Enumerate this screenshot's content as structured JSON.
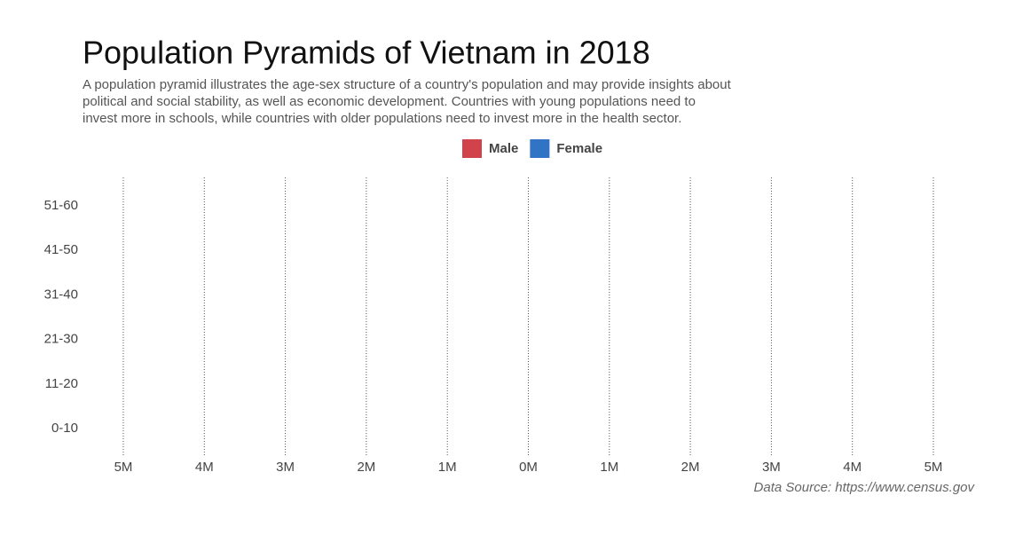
{
  "chart_data": {
    "type": "pyramid",
    "title": "Population Pyramids of Vietnam in 2018",
    "subtitle": [
      "A population pyramid illustrates the age-sex structure of a country's population and may provide insights about",
      "political and social stability, as well as economic development. Countries with young populations need to",
      "invest more in schools, while countries with older populations need to invest more in the health sector."
    ],
    "caption": "Data Source: https://www.census.gov",
    "categories": [
      "0-10",
      "11-20",
      "21-30",
      "31-40",
      "41-50",
      "51-60"
    ],
    "series": [
      {
        "name": "Male",
        "color": "#d1434b",
        "values": [
          null,
          null,
          null,
          null,
          null,
          null
        ]
      },
      {
        "name": "Female",
        "color": "#3173c4",
        "values": [
          null,
          null,
          null,
          null,
          null,
          null
        ]
      }
    ],
    "xlim": [
      -5000000,
      5000000
    ],
    "xticks": [
      {
        "value": -5000000,
        "label": "5M"
      },
      {
        "value": -4000000,
        "label": "4M"
      },
      {
        "value": -3000000,
        "label": "3M"
      },
      {
        "value": -2000000,
        "label": "2M"
      },
      {
        "value": -1000000,
        "label": "1M"
      },
      {
        "value": 0,
        "label": "0M"
      },
      {
        "value": 1000000,
        "label": "1M"
      },
      {
        "value": 2000000,
        "label": "2M"
      },
      {
        "value": 3000000,
        "label": "3M"
      },
      {
        "value": 4000000,
        "label": "4M"
      },
      {
        "value": 5000000,
        "label": "5M"
      }
    ],
    "grid": true,
    "legend": "top"
  }
}
